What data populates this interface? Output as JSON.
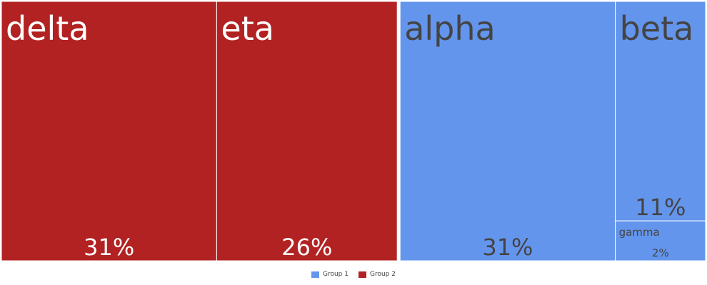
{
  "chart_data": {
    "type": "treemap",
    "groups": [
      {
        "name": "Group 1",
        "color": "#6495ED",
        "text_color": "#444444",
        "items": [
          {
            "label": "alpha",
            "value": 31,
            "percent_label": "31%"
          },
          {
            "label": "beta",
            "value": 11,
            "percent_label": "11%"
          },
          {
            "label": "gamma",
            "value": 2,
            "percent_label": "2%"
          }
        ]
      },
      {
        "name": "Group 2",
        "color": "#B22222",
        "text_color": "#ffffff",
        "items": [
          {
            "label": "delta",
            "value": 31,
            "percent_label": "31%"
          },
          {
            "label": "eta",
            "value": 26,
            "percent_label": "26%"
          }
        ]
      }
    ],
    "legend": {
      "position": "bottom",
      "entries": [
        "Group 1",
        "Group 2"
      ]
    }
  }
}
